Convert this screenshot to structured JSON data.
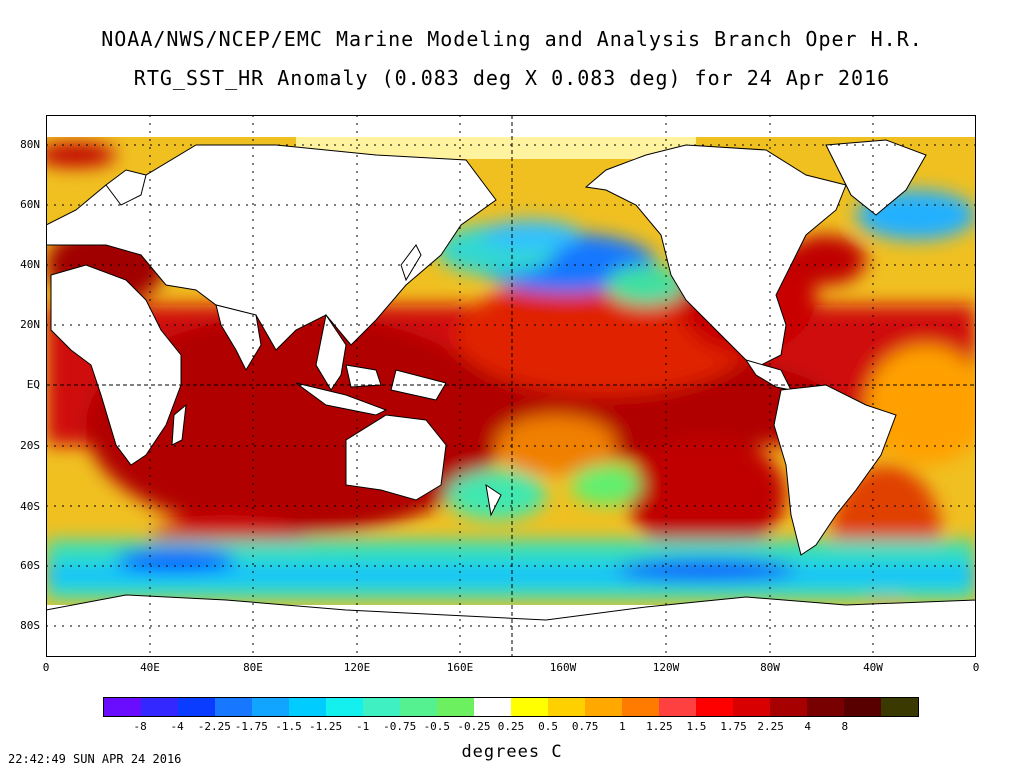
{
  "header": {
    "title_line1": "NOAA/NWS/NCEP/EMC Marine Modeling and Analysis Branch Oper H.R.",
    "title_line2": "RTG_SST_HR Anomaly (0.083 deg X 0.083 deg) for 24 Apr 2016"
  },
  "axes": {
    "lat_labels": [
      "80N",
      "60N",
      "40N",
      "20N",
      "EQ",
      "20S",
      "40S",
      "60S",
      "80S"
    ],
    "lon_labels": [
      "0",
      "40E",
      "80E",
      "120E",
      "160E",
      "160W",
      "120W",
      "80W",
      "40W",
      "0"
    ]
  },
  "colorbar": {
    "colors": [
      "#6a0dff",
      "#3328ff",
      "#0a3cff",
      "#1777ff",
      "#12a5ff",
      "#00ccff",
      "#13f0ee",
      "#3ef0c2",
      "#55f090",
      "#6cf060",
      "#ffffff",
      "#ffff00",
      "#ffd000",
      "#ffa800",
      "#ff7b00",
      "#ff4040",
      "#ff0000",
      "#d80000",
      "#a60000",
      "#780000",
      "#580000",
      "#3a3a00"
    ],
    "labels": [
      "-8",
      "-4",
      "-2.25",
      "-1.75",
      "-1.5",
      "-1.25",
      "-1",
      "-0.75",
      "-0.5",
      "-0.25",
      "0.25",
      "0.5",
      "0.75",
      "1",
      "1.25",
      "1.5",
      "1.75",
      "2.25",
      "4",
      "8"
    ],
    "units": "degrees C"
  },
  "footer": {
    "timestamp": "22:42:49  SUN APR 24 2016"
  }
}
